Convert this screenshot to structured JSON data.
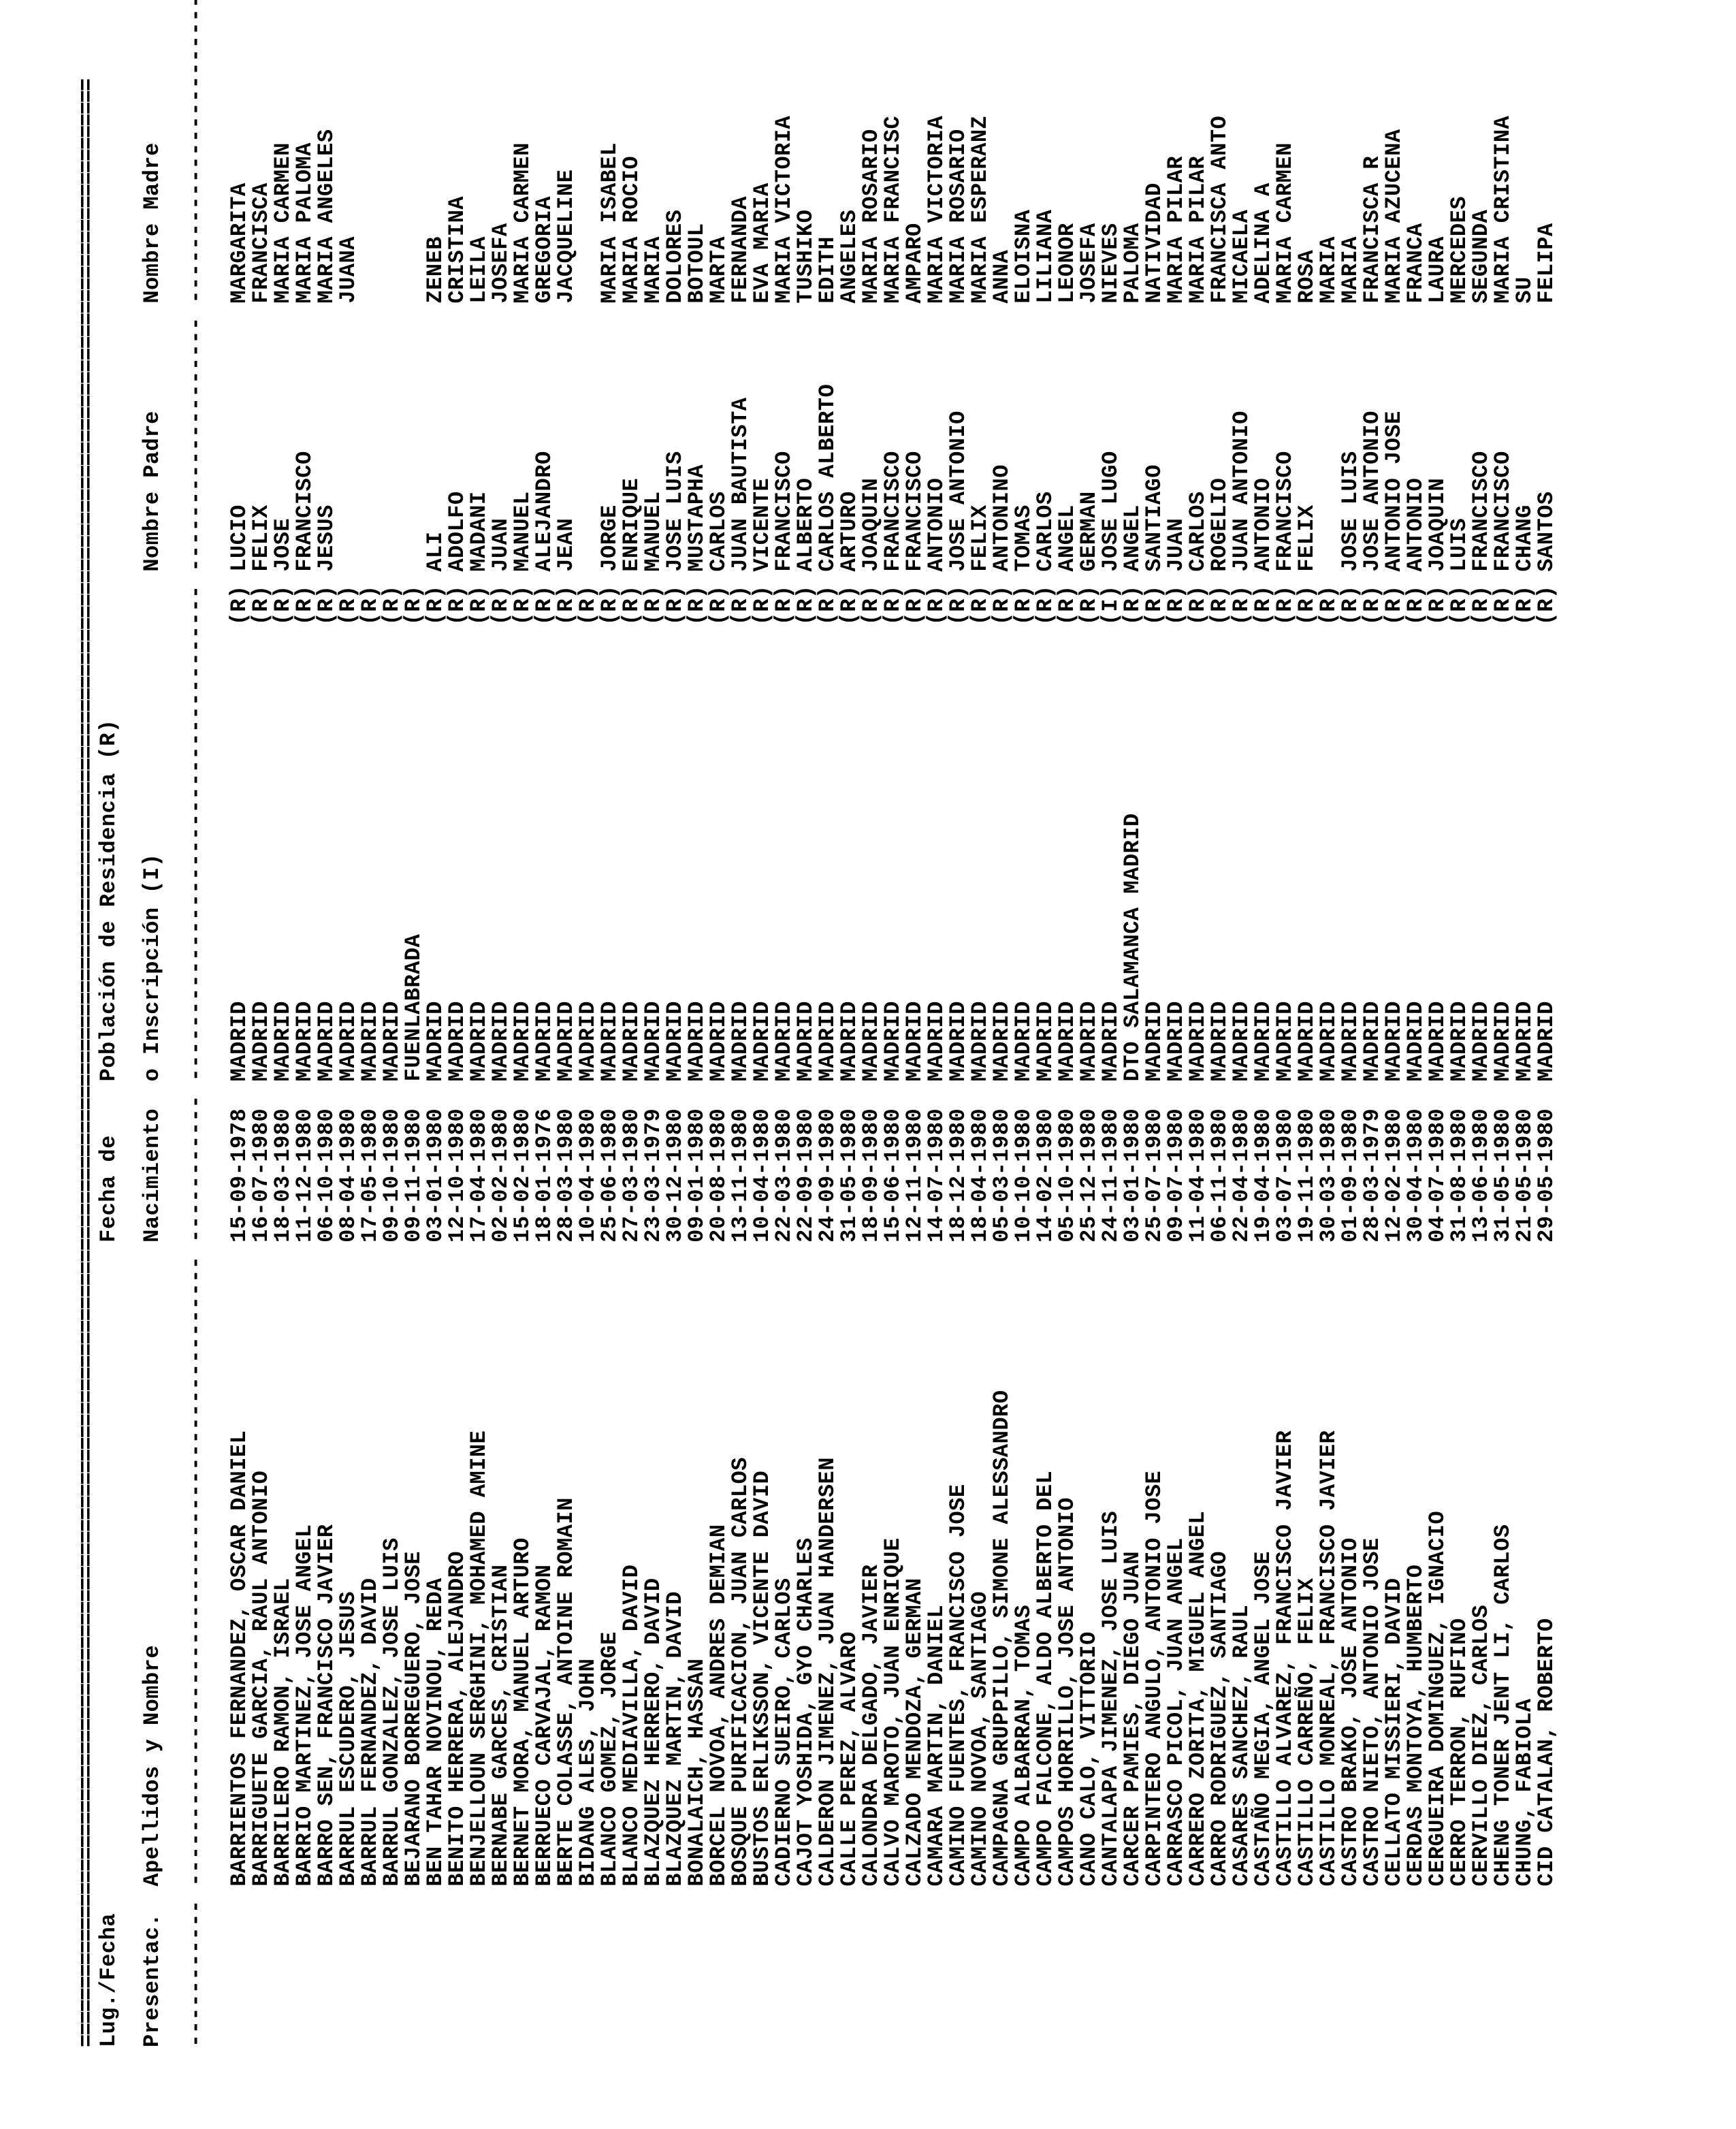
{
  "ruleChar": "=",
  "ruleWidth": 168,
  "dashWidth": 168,
  "header": {
    "line1": {
      "c1": "Lug./Fecha",
      "c2": "",
      "c3": "Fecha de",
      "c4": "Población de Residencia (R)",
      "c5": "",
      "c6": ""
    },
    "line2": {
      "c1": "Presentac.",
      "c2": "Apellidos y Nombre",
      "c3": "Nacimiento",
      "c4": "o Inscripción (I)",
      "c5": "Nombre Padre",
      "c6": "Nombre Madre"
    }
  },
  "cols": {
    "c1": 0,
    "c2": 12,
    "c3": 60,
    "c4": 72,
    "c5": 110,
    "c6": 130,
    "len": 168,
    "rcol": 106
  },
  "rows": [
    {
      "n": "BARRIENTOS FERNANDEZ, OSCAR DANIEL",
      "d": "15-09-1978",
      "p": "MADRID",
      "t": "(R)",
      "f": "LUCIO",
      "m": "MARGARITA"
    },
    {
      "n": "BARRIGUETE GARCIA, RAUL ANTONIO",
      "d": "16-07-1980",
      "p": "MADRID",
      "t": "(R)",
      "f": "FELIX",
      "m": "FRANCISCA"
    },
    {
      "n": "BARRILERO RAMON, ISRAEL",
      "d": "18-03-1980",
      "p": "MADRID",
      "t": "(R)",
      "f": "JOSE",
      "m": "MARIA CARMEN"
    },
    {
      "n": "BARRIO MARTINEZ, JOSE ANGEL",
      "d": "11-12-1980",
      "p": "MADRID",
      "t": "(R)",
      "f": "FRANCISCO",
      "m": "MARIA PALOMA"
    },
    {
      "n": "BARRO SEN, FRANCISCO JAVIER",
      "d": "06-10-1980",
      "p": "MADRID",
      "t": "(R)",
      "f": "JESUS",
      "m": "MARIA ANGELES"
    },
    {
      "n": "BARRUL ESCUDERO, JESUS",
      "d": "08-04-1980",
      "p": "MADRID",
      "t": "(R)",
      "f": "",
      "m": "JUANA"
    },
    {
      "n": "BARRUL FERNANDEZ, DAVID",
      "d": "17-05-1980",
      "p": "MADRID",
      "t": "(R)",
      "f": "",
      "m": ""
    },
    {
      "n": "BARRUL GONZALEZ, JOSE LUIS",
      "d": "09-10-1980",
      "p": "MADRID",
      "t": "(R)",
      "f": "",
      "m": ""
    },
    {
      "n": "BEJARANO BORREGUERO, JOSE",
      "d": "09-11-1980",
      "p": "FUENLABRADA",
      "t": "(R)",
      "f": "",
      "m": ""
    },
    {
      "n": "BEN TAHAR NOVINOU, REDA",
      "d": "03-01-1980",
      "p": "MADRID",
      "t": "(R)",
      "f": "ALI",
      "m": "ZENEB"
    },
    {
      "n": "BENITO HERRERA, ALEJANDRO",
      "d": "12-10-1980",
      "p": "MADRID",
      "t": "(R)",
      "f": "ADOLFO",
      "m": "CRISTINA"
    },
    {
      "n": "BENJELLOUN SERGHINI, MOHAMED AMINE",
      "d": "17-04-1980",
      "p": "MADRID",
      "t": "(R)",
      "f": "MADANI",
      "m": "LEILA"
    },
    {
      "n": "BERNABE GARCES, CRISTIAN",
      "d": "02-02-1980",
      "p": "MADRID",
      "t": "(R)",
      "f": "JUAN",
      "m": "JOSEFA"
    },
    {
      "n": "BERNET MORA, MANUEL ARTURO",
      "d": "15-02-1980",
      "p": "MADRID",
      "t": "(R)",
      "f": "MANUEL",
      "m": "MARIA CARMEN"
    },
    {
      "n": "BERRUECO CARVAJAL, RAMON",
      "d": "18-01-1976",
      "p": "MADRID",
      "t": "(R)",
      "f": "ALEJANDRO",
      "m": "GREGORIA"
    },
    {
      "n": "BERTE COLASSE, ANTOINE ROMAIN",
      "d": "28-03-1980",
      "p": "MADRID",
      "t": "(R)",
      "f": "JEAN",
      "m": "JACQUELINE"
    },
    {
      "n": "BIDANG ALES, JOHN",
      "d": "10-04-1980",
      "p": "MADRID",
      "t": "(R)",
      "f": "",
      "m": ""
    },
    {
      "n": "BLANCO GOMEZ, JORGE",
      "d": "25-06-1980",
      "p": "MADRID",
      "t": "(R)",
      "f": "JORGE",
      "m": "MARIA ISABEL"
    },
    {
      "n": "BLANCO MEDIAVILLA, DAVID",
      "d": "27-03-1980",
      "p": "MADRID",
      "t": "(R)",
      "f": "ENRIQUE",
      "m": "MARIA ROCIO"
    },
    {
      "n": "BLAZQUEZ HERRERO, DAVID",
      "d": "23-03-1979",
      "p": "MADRID",
      "t": "(R)",
      "f": "MANUEL",
      "m": "MARIA"
    },
    {
      "n": "BLAZQUEZ MARTIN, DAVID",
      "d": "30-12-1980",
      "p": "MADRID",
      "t": "(R)",
      "f": "JOSE LUIS",
      "m": "DOLORES"
    },
    {
      "n": "BONALAICH, HASSAN",
      "d": "09-01-1980",
      "p": "MADRID",
      "t": "(R)",
      "f": "MUSTAPHA",
      "m": "BOTOUL"
    },
    {
      "n": "BORCEL NOVOA, ANDRES DEMIAN",
      "d": "20-08-1980",
      "p": "MADRID",
      "t": "(R)",
      "f": "CARLOS",
      "m": "MARTA"
    },
    {
      "n": "BOSQUE PURIFICACION, JUAN CARLOS",
      "d": "13-11-1980",
      "p": "MADRID",
      "t": "(R)",
      "f": "JUAN BAUTISTA",
      "m": "FERNANDA"
    },
    {
      "n": "BUSTOS ERLIKSSON, VICENTE DAVID",
      "d": "10-04-1980",
      "p": "MADRID",
      "t": "(R)",
      "f": "VICENTE",
      "m": "EVA MARIA"
    },
    {
      "n": "CADIERNO SUEIRO, CARLOS",
      "d": "22-03-1980",
      "p": "MADRID",
      "t": "(R)",
      "f": "FRANCISCO",
      "m": "MARIA VICTORIA"
    },
    {
      "n": "CAJOT YOSHIDA, GYO CHARLES",
      "d": "22-09-1980",
      "p": "MADRID",
      "t": "(R)",
      "f": "ALBERTO",
      "m": "TUSHIKO"
    },
    {
      "n": "CALDERON JIMENEZ, JUAN HANDERSEN",
      "d": "24-09-1980",
      "p": "MADRID",
      "t": "(R)",
      "f": "CARLOS ALBERTO",
      "m": "EDITH"
    },
    {
      "n": "CALLE PEREZ, ALVARO",
      "d": "31-05-1980",
      "p": "MADRID",
      "t": "(R)",
      "f": "ARTURO",
      "m": "ANGELES"
    },
    {
      "n": "CALONDRA DELGADO, JAVIER",
      "d": "18-09-1980",
      "p": "MADRID",
      "t": "(R)",
      "f": "JOAQUIN",
      "m": "MARIA ROSARIO"
    },
    {
      "n": "CALVO MAROTO, JUAN ENRIQUE",
      "d": "15-06-1980",
      "p": "MADRID",
      "t": "(R)",
      "f": "FRANCISCO",
      "m": "MARIA FRANCISC"
    },
    {
      "n": "CALZADO MENDOZA, GERMAN",
      "d": "12-11-1980",
      "p": "MADRID",
      "t": "(R)",
      "f": "FRANCISCO",
      "m": "AMPARO"
    },
    {
      "n": "CAMARA MARTIN, DANIEL",
      "d": "14-07-1980",
      "p": "MADRID",
      "t": "(R)",
      "f": "ANTONIO",
      "m": "MARIA VICTORIA"
    },
    {
      "n": "CAMINO FUENTES, FRANCISCO JOSE",
      "d": "18-12-1980",
      "p": "MADRID",
      "t": "(R)",
      "f": "JOSE ANTONIO",
      "m": "MARIA ROSARIO"
    },
    {
      "n": "CAMINO NOVOA, SANTIAGO",
      "d": "18-04-1980",
      "p": "MADRID",
      "t": "(R)",
      "f": "FELIX",
      "m": "MARIA ESPERANZ"
    },
    {
      "n": "CAMPAGNA GRUPPILLO, SIMONE ALESSANDRO",
      "d": "05-03-1980",
      "p": "MADRID",
      "t": "(R)",
      "f": "ANTONINO",
      "m": "ANNA"
    },
    {
      "n": "CAMPO ALBARRAN, TOMAS",
      "d": "10-10-1980",
      "p": "MADRID",
      "t": "(R)",
      "f": "TOMAS",
      "m": "ELOISNA"
    },
    {
      "n": "CAMPO FALCONE, ALDO ALBERTO DEL",
      "d": "14-02-1980",
      "p": "MADRID",
      "t": "(R)",
      "f": "CARLOS",
      "m": "LILIANA"
    },
    {
      "n": "CAMPOS HORRILLO, JOSE ANTONIO",
      "d": "05-10-1980",
      "p": "MADRID",
      "t": "(R)",
      "f": "ANGEL",
      "m": "LEONOR"
    },
    {
      "n": "CANO CALO, VITTORIO",
      "d": "25-12-1980",
      "p": "MADRID",
      "t": "(R)",
      "f": "GERMAN",
      "m": "JOSEFA"
    },
    {
      "n": "CANTALAPA JIMENEZ, JOSE LUIS",
      "d": "24-11-1980",
      "p": "MADRID",
      "t": "(I)",
      "f": "JOSE LUGO",
      "m": "NIEVES"
    },
    {
      "n": "CARCER PAMIES, DIEGO JUAN",
      "d": "03-01-1980",
      "p": "DTO SALAMANCA MADRID",
      "t": "(R)",
      "f": "ANGEL",
      "m": "PALOMA"
    },
    {
      "n": "CARPINTERO ANGULO, ANTONIO JOSE",
      "d": "25-07-1980",
      "p": "MADRID",
      "t": "(R)",
      "f": "SANTIAGO",
      "m": "NATIVIDAD"
    },
    {
      "n": "CARRASCO PICOL, JUAN ANGEL",
      "d": "09-07-1980",
      "p": "MADRID",
      "t": "(R)",
      "f": "JUAN",
      "m": "MARIA PILAR"
    },
    {
      "n": "CARRERO ZORITA, MIGUEL ANGEL",
      "d": "11-04-1980",
      "p": "MADRID",
      "t": "(R)",
      "f": "CARLOS",
      "m": "MARIA PILAR"
    },
    {
      "n": "CARRO RODRIGUEZ, SANTIAGO",
      "d": "06-11-1980",
      "p": "MADRID",
      "t": "(R)",
      "f": "ROGELIO",
      "m": "FRANCISCA ANTO"
    },
    {
      "n": "CASARES SANCHEZ, RAUL",
      "d": "22-04-1980",
      "p": "MADRID",
      "t": "(R)",
      "f": "JUAN ANTONIO",
      "m": "MICAELA"
    },
    {
      "n": "CASTAÑO MEGIA, ANGEL JOSE",
      "d": "19-04-1980",
      "p": "MADRID",
      "t": "(R)",
      "f": "ANTONIO",
      "m": "ADELINA A"
    },
    {
      "n": "CASTILLO ALVAREZ, FRANCISCO JAVIER",
      "d": "03-07-1980",
      "p": "MADRID",
      "t": "(R)",
      "f": "FRANCISCO",
      "m": "MARIA CARMEN"
    },
    {
      "n": "CASTILLO CARREÑO, FELIX",
      "d": "19-11-1980",
      "p": "MADRID",
      "t": "(R)",
      "f": "FELIX",
      "m": "ROSA"
    },
    {
      "n": "CASTILLO MONREAL, FRANCISCO JAVIER",
      "d": "30-03-1980",
      "p": "MADRID",
      "t": "(R)",
      "f": "",
      "m": "MARIA"
    },
    {
      "n": "CASTRO BRAKO, JOSE ANTONIO",
      "d": "01-09-1980",
      "p": "MADRID",
      "t": "(R)",
      "f": "JOSE LUIS",
      "m": "MARIA"
    },
    {
      "n": "CASTRO NIETO, ANTONIO JOSE",
      "d": "28-03-1979",
      "p": "MADRID",
      "t": "(R)",
      "f": "JOSE ANTONIO",
      "m": "FRANCISCA R"
    },
    {
      "n": "CELLATO MISSIERI, DAVID",
      "d": "12-02-1980",
      "p": "MADRID",
      "t": "(R)",
      "f": "ANTONIO JOSE",
      "m": "MARIA AZUCENA"
    },
    {
      "n": "CERDAS MONTOYA, HUMBERTO",
      "d": "30-04-1980",
      "p": "MADRID",
      "t": "(R)",
      "f": "ANTONIO",
      "m": "FRANCA"
    },
    {
      "n": "CERGUEIRA DOMINGUEZ, IGNACIO",
      "d": "04-07-1980",
      "p": "MADRID",
      "t": "(R)",
      "f": "JOAQUIN",
      "m": "LAURA"
    },
    {
      "n": "CERRO TERRON, RUFINO",
      "d": "31-08-1980",
      "p": "MADRID",
      "t": "(R)",
      "f": "LUIS",
      "m": "MERCEDES"
    },
    {
      "n": "CERVILLO DIEZ, CARLOS",
      "d": "13-06-1980",
      "p": "MADRID",
      "t": "(R)",
      "f": "FRANCISCO",
      "m": "SEGUNDA"
    },
    {
      "n": "CHENG TONER JENT LI, CARLOS",
      "d": "31-05-1980",
      "p": "MADRID",
      "t": "(R)",
      "f": "FRANCISCO",
      "m": "MARIA CRISTINA"
    },
    {
      "n": "CHUNG, FABIOLA",
      "d": "21-05-1980",
      "p": "MADRID",
      "t": "(R)",
      "f": "CHANG",
      "m": "SU"
    },
    {
      "n": "CID CATALAN, ROBERTO",
      "d": "29-05-1980",
      "p": "MADRID",
      "t": "(R)",
      "f": "SANTOS",
      "m": "FELIPA"
    }
  ]
}
